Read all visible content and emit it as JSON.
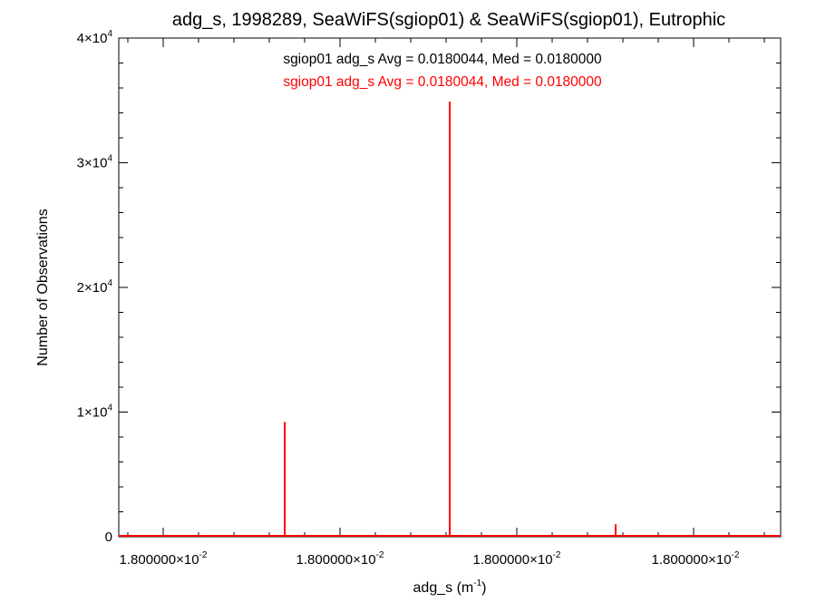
{
  "chart_data": {
    "type": "bar",
    "title": "adg_s, 1998289, SeaWiFS(sgiop01) & SeaWiFS(sgiop01), Eutrophic",
    "xlabel": {
      "base": "adg_s (m",
      "sup": "-1",
      "close": ")"
    },
    "ylabel": "Number of Observations",
    "annotations": [
      {
        "text": "sgiop01 adg_s Avg = 0.0180044, Med = 0.0180000",
        "color": "#000000"
      },
      {
        "text": "sgiop01 adg_s Avg = 0.0180044, Med = 0.0180000",
        "color": "#ff0000"
      }
    ],
    "ylim": [
      0,
      40000
    ],
    "y_ticks": [
      {
        "value": 0,
        "label": "0",
        "exp": ""
      },
      {
        "value": 10000,
        "label": "1×10",
        "exp": "4"
      },
      {
        "value": 20000,
        "label": "2×10",
        "exp": "4"
      },
      {
        "value": 30000,
        "label": "3×10",
        "exp": "4"
      },
      {
        "value": 40000,
        "label": "4×10",
        "exp": "4"
      }
    ],
    "x_ticks": [
      {
        "label": "1.800000×10",
        "exp": "-2"
      },
      {
        "label": "1.800000×10",
        "exp": "-2"
      },
      {
        "label": "1.800000×10",
        "exp": "-2"
      },
      {
        "label": "1.800000×10",
        "exp": "-2"
      }
    ],
    "series": [
      {
        "color": "#ff0000",
        "values": [
          9200,
          34900,
          1000
        ]
      }
    ],
    "grid": false
  }
}
